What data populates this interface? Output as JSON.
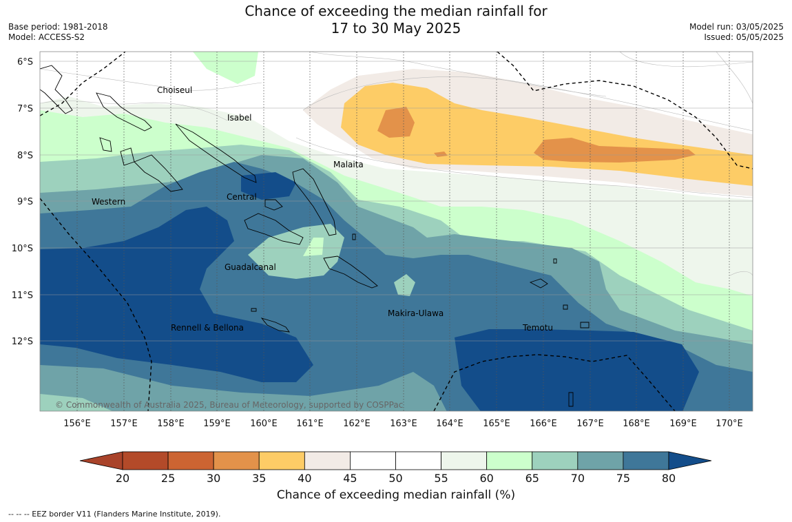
{
  "title": {
    "line1": "Chance of exceeding the median rainfall for",
    "line2": "17 to 30 May 2025"
  },
  "meta_left": {
    "base_period": "Base period: 1981-2018",
    "model": "Model: ACCESS-S2"
  },
  "meta_right": {
    "model_run": "Model run: 03/05/2025",
    "issued": "Issued: 05/05/2025"
  },
  "lat_labels": [
    "6°S",
    "7°S",
    "8°S",
    "9°S",
    "10°S",
    "11°S",
    "12°S"
  ],
  "lon_labels": [
    "156°E",
    "157°E",
    "158°E",
    "159°E",
    "160°E",
    "161°E",
    "162°E",
    "163°E",
    "164°E",
    "165°E",
    "166°E",
    "167°E",
    "168°E",
    "169°E",
    "170°E"
  ],
  "regions": [
    "Choiseul",
    "Isabel",
    "Malaita",
    "Western",
    "Central",
    "Guadalcanal",
    "Makira-Ulawa",
    "Rennell & Bellona",
    "Temotu"
  ],
  "copyright": "© Commonwealth of Australia 2025, Bureau of Meteorology, supported by COSPPac",
  "colorbar": {
    "ticks": [
      "20",
      "25",
      "30",
      "35",
      "40",
      "45",
      "50",
      "55",
      "60",
      "65",
      "70",
      "75",
      "80"
    ],
    "colors": [
      "#a9432a",
      "#b34a29",
      "#cc6432",
      "#e3924a",
      "#fdcc66",
      "#f2ebe6",
      "#ffffff",
      "#ffffff",
      "#eef6ec",
      "#ccffcc",
      "#9dd1bd",
      "#6fa3a8",
      "#3f7799",
      "#134d8a"
    ],
    "title": "Chance of exceeding median rainfall (%)"
  },
  "footer": "--  --  -- EEZ border V11 (Flanders Marine Institute, 2019)."
}
